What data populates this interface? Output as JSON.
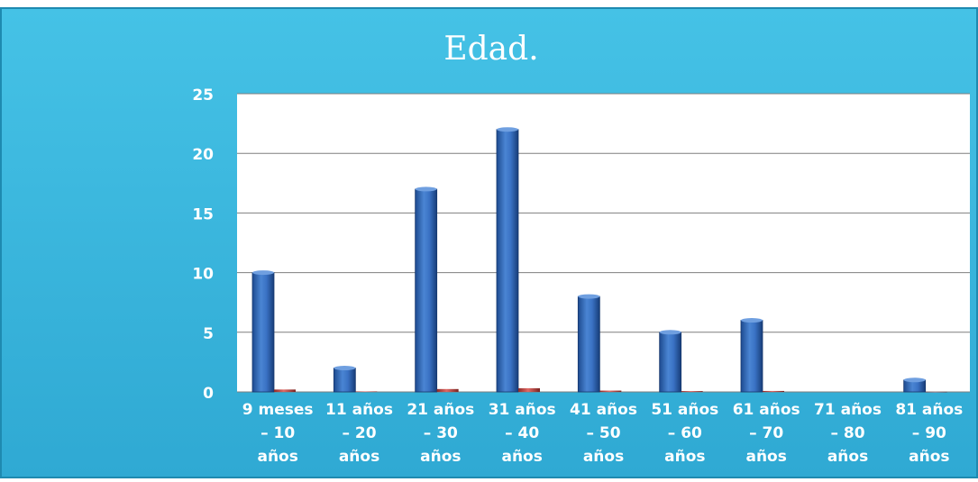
{
  "chart_data": {
    "type": "bar",
    "title": "Edad.",
    "xlabel": "",
    "ylabel": "",
    "ylim": [
      0,
      25
    ],
    "yticks": [
      "0",
      "5",
      "10",
      "15",
      "20",
      "25"
    ],
    "grid": true,
    "legend": "none",
    "categories": [
      [
        "9 meses",
        "– 10",
        "años"
      ],
      [
        "11 años",
        "– 20",
        "años"
      ],
      [
        "21 años",
        "– 30",
        "años"
      ],
      [
        "31 años",
        "– 40",
        "años"
      ],
      [
        "41 años",
        "– 50",
        "años"
      ],
      [
        "51 años",
        "– 60",
        "años"
      ],
      [
        "61 años",
        "– 70",
        "años"
      ],
      [
        "71 años",
        "– 80",
        "años"
      ],
      [
        "81 años",
        "– 90",
        "años"
      ]
    ],
    "series": [
      {
        "values": [
          10,
          2,
          17,
          22,
          8,
          5,
          6,
          0,
          1
        ],
        "color": "#2f63b0"
      },
      {
        "values": [
          0.2,
          0.04,
          0.24,
          0.31,
          0.11,
          0.07,
          0.08,
          0,
          0.01
        ],
        "color": "#c0504d"
      }
    ]
  },
  "colors": {
    "frame_background": "#3fb8dc",
    "frame_border": "#1e8ab0",
    "plot_background": "#ffffff",
    "text": "#ffffff",
    "gridline": "#7f7f7f"
  }
}
